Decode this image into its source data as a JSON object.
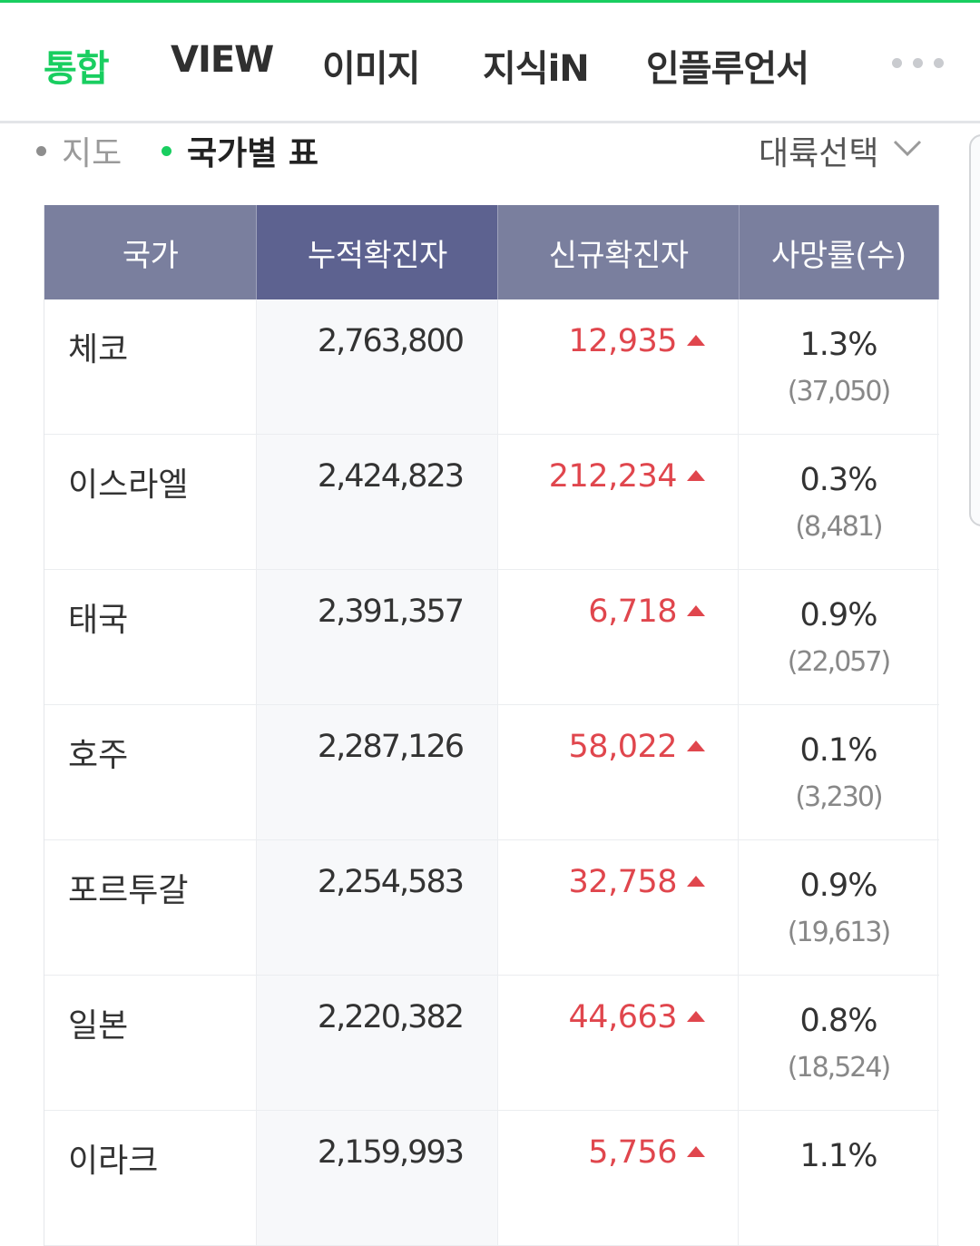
{
  "tabs": [
    {
      "label": "통합",
      "active": true
    },
    {
      "label": "VIEW",
      "active": false
    },
    {
      "label": "이미지",
      "active": false
    },
    {
      "label": "지식iN",
      "active": false
    },
    {
      "label": "인플루언서",
      "active": false
    }
  ],
  "view_toggle": {
    "map_label": "지도",
    "table_label": "국가별 표",
    "selected": "국가별 표"
  },
  "continent_select": {
    "label": "대륙선택"
  },
  "table": {
    "headers": [
      "국가",
      "누적확진자",
      "신규확진자",
      "사망률(수)"
    ],
    "sorted_column": "누적확진자",
    "rows": [
      {
        "country": "체코",
        "total": "2,763,800",
        "new": "12,935",
        "rate": "1.3%",
        "deaths": "(37,050)"
      },
      {
        "country": "이스라엘",
        "total": "2,424,823",
        "new": "212,234",
        "rate": "0.3%",
        "deaths": "(8,481)"
      },
      {
        "country": "태국",
        "total": "2,391,357",
        "new": "6,718",
        "rate": "0.9%",
        "deaths": "(22,057)"
      },
      {
        "country": "호주",
        "total": "2,287,126",
        "new": "58,022",
        "rate": "0.1%",
        "deaths": "(3,230)"
      },
      {
        "country": "포르투갈",
        "total": "2,254,583",
        "new": "32,758",
        "rate": "0.9%",
        "deaths": "(19,613)"
      },
      {
        "country": "일본",
        "total": "2,220,382",
        "new": "44,663",
        "rate": "0.8%",
        "deaths": "(18,524)"
      },
      {
        "country": "이라크",
        "total": "2,159,993",
        "new": "5,756",
        "rate": "1.1%",
        "deaths": ""
      }
    ]
  },
  "colors": {
    "brand_green": "#19ce60",
    "header_bg": "#7a7f9e",
    "header_sorted_bg": "#5d6290",
    "increase_red": "#e0464d"
  }
}
